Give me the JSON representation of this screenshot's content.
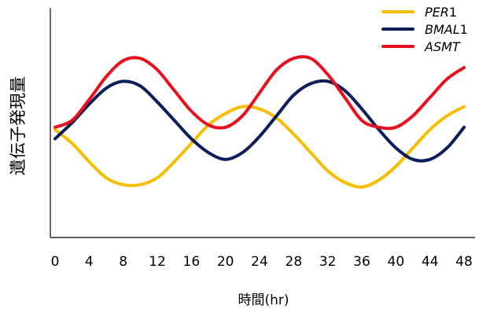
{
  "chart_data": {
    "type": "line",
    "title": "",
    "xlabel": "時間(hr)",
    "ylabel": "遺伝子発現量",
    "xlim": [
      0,
      48
    ],
    "ylim": [
      0,
      10
    ],
    "x_ticks": [
      0,
      4,
      8,
      12,
      16,
      20,
      24,
      28,
      32,
      36,
      40,
      44,
      48
    ],
    "y_ticks_shown": false,
    "grid": false,
    "legend_position": "top-right",
    "series": [
      {
        "name_italic": "PER",
        "name_suffix": "1",
        "color": "#F7BD00",
        "x": [
          0,
          2,
          4,
          6,
          8,
          10,
          12,
          14,
          16,
          18,
          20,
          22,
          24,
          26,
          28,
          30,
          32,
          34,
          36,
          38,
          40,
          42,
          44,
          46,
          48
        ],
        "y": [
          4.7,
          4.1,
          3.3,
          2.6,
          2.3,
          2.3,
          2.6,
          3.3,
          4.1,
          4.9,
          5.4,
          5.7,
          5.6,
          5.2,
          4.5,
          3.7,
          2.9,
          2.4,
          2.2,
          2.5,
          3.1,
          3.9,
          4.7,
          5.3,
          5.7
        ]
      },
      {
        "name_italic": "BMAL",
        "name_suffix": "1",
        "color": "#0A1E5A",
        "x": [
          0,
          2,
          4,
          6,
          8,
          10,
          12,
          14,
          16,
          18,
          20,
          22,
          24,
          26,
          28,
          30,
          32,
          34,
          36,
          38,
          40,
          42,
          44,
          46,
          48
        ],
        "y": [
          4.3,
          5.0,
          5.8,
          6.5,
          6.8,
          6.6,
          5.9,
          5.1,
          4.3,
          3.7,
          3.4,
          3.7,
          4.4,
          5.3,
          6.2,
          6.7,
          6.8,
          6.4,
          5.6,
          4.7,
          3.9,
          3.4,
          3.4,
          3.9,
          4.8
        ]
      },
      {
        "name_italic": "ASMT",
        "name_suffix": "",
        "color": "#E8101E",
        "x": [
          0,
          2,
          4,
          6,
          8,
          10,
          12,
          14,
          16,
          18,
          20,
          22,
          24,
          26,
          28,
          30,
          32,
          34,
          36,
          38,
          40,
          42,
          44,
          46,
          48
        ],
        "y": [
          4.8,
          5.1,
          6.0,
          7.0,
          7.7,
          7.8,
          7.3,
          6.4,
          5.5,
          4.9,
          4.8,
          5.3,
          6.3,
          7.3,
          7.8,
          7.8,
          7.1,
          6.1,
          5.1,
          4.8,
          4.8,
          5.3,
          6.1,
          6.9,
          7.4
        ]
      }
    ]
  }
}
